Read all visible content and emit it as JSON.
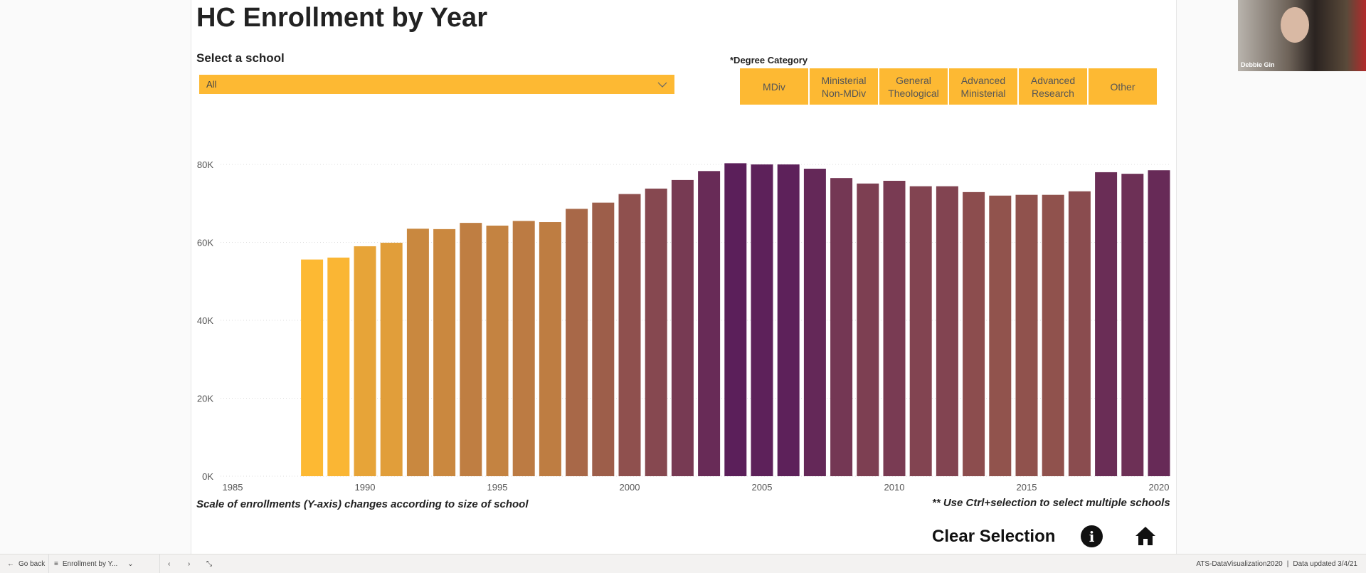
{
  "header": {
    "title": "HC Enrollment by Year"
  },
  "school_filter": {
    "label": "Select a school",
    "value": "All"
  },
  "degree_filter": {
    "label": "*Degree Category",
    "options": [
      "MDiv",
      "Ministerial\nNon-MDiv",
      "General\nTheological",
      "Advanced\nMinisterial",
      "Advanced\nResearch",
      "Other"
    ]
  },
  "webcam": {
    "name": "Debbie Gin"
  },
  "colors": {
    "accent": "#FDB933",
    "low": "#FDB933",
    "high": "#5B1F5A"
  },
  "chart_data": {
    "type": "bar",
    "title": "",
    "xlabel": "",
    "ylabel": "",
    "x_ticks": [
      "1985",
      "1990",
      "1995",
      "2000",
      "2005",
      "2010",
      "2015",
      "2020"
    ],
    "y_ticks": [
      "0K",
      "20K",
      "40K",
      "60K",
      "80K"
    ],
    "ylim": [
      0,
      80000
    ],
    "xlim": [
      1985,
      2020
    ],
    "grid": true,
    "color_scale": "value gradient yellow to purple",
    "categories": [
      1988,
      1989,
      1990,
      1991,
      1992,
      1993,
      1994,
      1995,
      1996,
      1997,
      1998,
      1999,
      2000,
      2001,
      2002,
      2003,
      2004,
      2005,
      2006,
      2007,
      2008,
      2009,
      2010,
      2011,
      2012,
      2013,
      2014,
      2015,
      2016,
      2017,
      2018,
      2019,
      2020
    ],
    "values": [
      55600,
      56100,
      59000,
      59900,
      63500,
      63400,
      65000,
      64300,
      65500,
      65200,
      68600,
      70200,
      72400,
      73800,
      76000,
      78300,
      80300,
      80000,
      80000,
      78900,
      76500,
      75100,
      75800,
      74400,
      74400,
      72900,
      72000,
      72200,
      72200,
      73100,
      78000,
      77600,
      78500
    ]
  },
  "notes": {
    "left": "Scale of enrollments (Y-axis) changes according to size of school",
    "right": "** Use Ctrl+selection to select multiple schools"
  },
  "actions": {
    "clear": "Clear Selection",
    "info_icon": "info-icon",
    "home_icon": "home-icon"
  },
  "bottom_bar": {
    "back": "Go back",
    "page": "Enrollment by Y...",
    "report": "ATS-DataVisualization2020",
    "updated": "Data updated 3/4/21"
  }
}
